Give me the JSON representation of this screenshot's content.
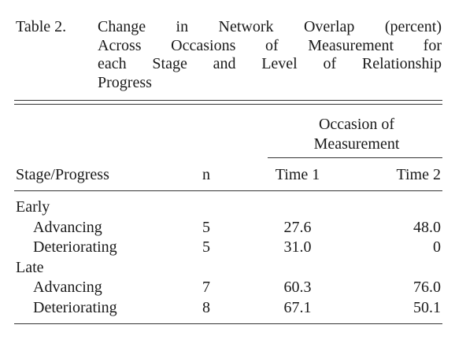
{
  "caption": {
    "label": "Table 2.",
    "lines": [
      "Change in Network Overlap (percent)",
      "Across Occasions of Measurement for",
      "each Stage and Level of Relationship",
      "Progress"
    ]
  },
  "table": {
    "spanner": [
      "Occasion of",
      "Measurement"
    ],
    "headers": [
      "Stage/Progress",
      "n",
      "Time 1",
      "Time 2"
    ],
    "groups": [
      {
        "label": "Early",
        "rows": [
          [
            "Advancing",
            "5",
            "27.6",
            "48.0"
          ],
          [
            "Deteriorating",
            "5",
            "31.0",
            "0"
          ]
        ]
      },
      {
        "label": "Late",
        "rows": [
          [
            "Advancing",
            "7",
            "60.3",
            "76.0"
          ],
          [
            "Deteriorating",
            "8",
            "67.1",
            "50.1"
          ]
        ]
      }
    ]
  }
}
